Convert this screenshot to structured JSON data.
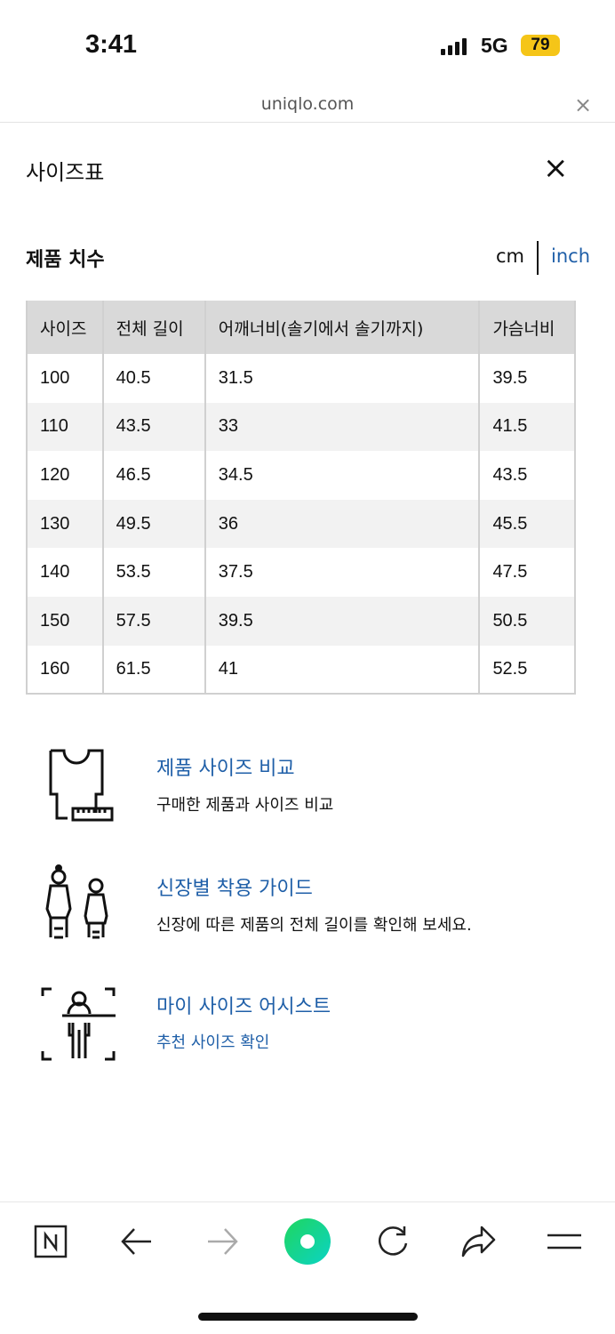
{
  "status": {
    "time": "3:41",
    "network": "5G",
    "battery": "79"
  },
  "browser": {
    "url": "uniqlo.com",
    "close": "×"
  },
  "modal": {
    "title": "사이즈표",
    "close": "×"
  },
  "section": {
    "title": "제품 치수",
    "unit_cm": "cm",
    "unit_inch": "inch"
  },
  "table": {
    "headers": [
      "사이즈",
      "전체 길이",
      "어깨너비(솔기에서 솔기까지)",
      "가슴너비"
    ],
    "rows": [
      [
        "100",
        "40.5",
        "31.5",
        "39.5"
      ],
      [
        "110",
        "43.5",
        "33",
        "41.5"
      ],
      [
        "120",
        "46.5",
        "34.5",
        "43.5"
      ],
      [
        "130",
        "49.5",
        "36",
        "45.5"
      ],
      [
        "140",
        "53.5",
        "37.5",
        "47.5"
      ],
      [
        "150",
        "57.5",
        "39.5",
        "50.5"
      ],
      [
        "160",
        "61.5",
        "41",
        "52.5"
      ]
    ]
  },
  "guides": [
    {
      "title": "제품 사이즈 비교",
      "desc": "구매한 제품과 사이즈 비교",
      "icon": "tshirt-ruler-icon"
    },
    {
      "title": "신장별 착용 가이드",
      "desc": "신장에 따른 제품의 전체 길이를 확인해 보세요.",
      "icon": "people-height-icon"
    },
    {
      "title": "마이 사이즈 어시스트",
      "desc": "추천 사이즈 확인",
      "icon": "body-scan-icon"
    }
  ],
  "colors": {
    "link": "#1f5fa8",
    "header_bg": "#d9d9d9",
    "alt_row": "#f2f2f2",
    "battery": "#f5c518"
  }
}
